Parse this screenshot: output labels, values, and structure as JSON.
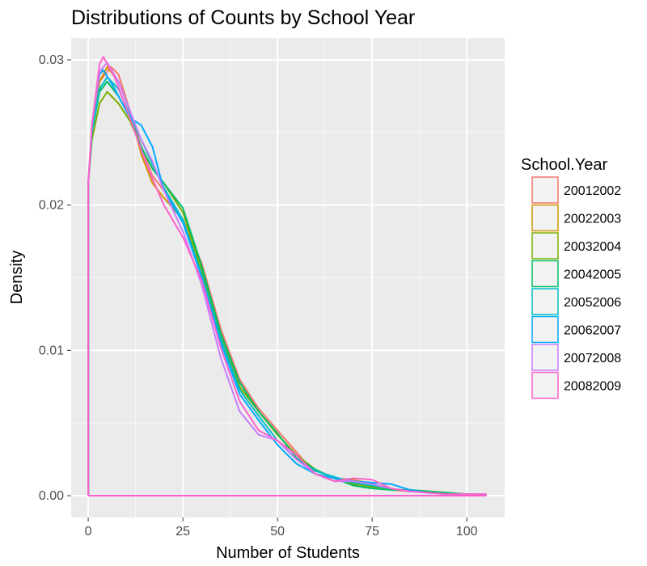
{
  "chart_data": {
    "type": "line",
    "title": "Distributions of Counts by School Year",
    "xlabel": "Number of Students",
    "ylabel": "Density",
    "xlim": [
      -4.5,
      110
    ],
    "ylim": [
      -0.0015,
      0.0315
    ],
    "x_ticks": [
      0,
      25,
      50,
      75,
      100
    ],
    "x_tick_labels": [
      "0",
      "25",
      "50",
      "75",
      "100"
    ],
    "y_ticks": [
      0.0,
      0.01,
      0.02,
      0.03
    ],
    "y_tick_labels": [
      "0.00",
      "0.01",
      "0.02",
      "0.03"
    ],
    "grid": true,
    "legend": {
      "title": "School.Year",
      "position": "right"
    },
    "series": [
      {
        "name": "20012002",
        "color": "#F8766D",
        "values": [
          [
            0,
            0
          ],
          [
            0,
            0.0215
          ],
          [
            1,
            0.025
          ],
          [
            3,
            0.0285
          ],
          [
            6,
            0.0295
          ],
          [
            8,
            0.029
          ],
          [
            11,
            0.0265
          ],
          [
            14,
            0.024
          ],
          [
            17,
            0.022
          ],
          [
            20,
            0.021
          ],
          [
            25,
            0.019
          ],
          [
            30,
            0.016
          ],
          [
            35,
            0.0115
          ],
          [
            40,
            0.008
          ],
          [
            45,
            0.006
          ],
          [
            50,
            0.0045
          ],
          [
            55,
            0.003
          ],
          [
            60,
            0.0015
          ],
          [
            65,
            0.001
          ],
          [
            70,
            0.0011
          ],
          [
            75,
            0.0008
          ],
          [
            80,
            0.0004
          ],
          [
            85,
            0.0003
          ],
          [
            90,
            0.0003
          ],
          [
            95,
            0.0002
          ],
          [
            100,
            0.0001
          ],
          [
            105,
            0.0001
          ],
          [
            105,
            0
          ],
          [
            0,
            0
          ]
        ]
      },
      {
        "name": "20022003",
        "color": "#CD9600",
        "values": [
          [
            0,
            0
          ],
          [
            0,
            0.0215
          ],
          [
            1,
            0.025
          ],
          [
            3,
            0.0285
          ],
          [
            5,
            0.0295
          ],
          [
            8,
            0.0285
          ],
          [
            11,
            0.0265
          ],
          [
            14,
            0.0235
          ],
          [
            17,
            0.0215
          ],
          [
            20,
            0.0205
          ],
          [
            25,
            0.019
          ],
          [
            30,
            0.0155
          ],
          [
            35,
            0.011
          ],
          [
            40,
            0.0075
          ],
          [
            45,
            0.0058
          ],
          [
            50,
            0.0042
          ],
          [
            55,
            0.0028
          ],
          [
            60,
            0.0015
          ],
          [
            65,
            0.0012
          ],
          [
            70,
            0.0011
          ],
          [
            75,
            0.0008
          ],
          [
            80,
            0.0005
          ],
          [
            85,
            0.0003
          ],
          [
            90,
            0.0003
          ],
          [
            95,
            0.0002
          ],
          [
            100,
            0.0001
          ],
          [
            105,
            0.0001
          ],
          [
            105,
            0
          ],
          [
            0,
            0
          ]
        ]
      },
      {
        "name": "20032004",
        "color": "#7CAE00",
        "values": [
          [
            0,
            0
          ],
          [
            0,
            0.0215
          ],
          [
            1,
            0.0245
          ],
          [
            3,
            0.027
          ],
          [
            5,
            0.0278
          ],
          [
            8,
            0.027
          ],
          [
            11,
            0.0258
          ],
          [
            14,
            0.024
          ],
          [
            17,
            0.0225
          ],
          [
            20,
            0.0215
          ],
          [
            25,
            0.0195
          ],
          [
            30,
            0.0155
          ],
          [
            35,
            0.011
          ],
          [
            40,
            0.0075
          ],
          [
            45,
            0.0058
          ],
          [
            50,
            0.0042
          ],
          [
            55,
            0.0028
          ],
          [
            60,
            0.0018
          ],
          [
            65,
            0.0012
          ],
          [
            70,
            0.0008
          ],
          [
            75,
            0.0006
          ],
          [
            80,
            0.0004
          ],
          [
            85,
            0.0004
          ],
          [
            90,
            0.0003
          ],
          [
            95,
            0.0002
          ],
          [
            100,
            0.0001
          ],
          [
            105,
            0.0001
          ],
          [
            105,
            0
          ],
          [
            0,
            0
          ]
        ]
      },
      {
        "name": "20042005",
        "color": "#00BE67",
        "values": [
          [
            0,
            0
          ],
          [
            0,
            0.0215
          ],
          [
            1,
            0.025
          ],
          [
            3,
            0.0278
          ],
          [
            5,
            0.0285
          ],
          [
            8,
            0.0275
          ],
          [
            11,
            0.026
          ],
          [
            14,
            0.024
          ],
          [
            17,
            0.0225
          ],
          [
            20,
            0.0215
          ],
          [
            25,
            0.0198
          ],
          [
            30,
            0.0158
          ],
          [
            35,
            0.0112
          ],
          [
            40,
            0.0078
          ],
          [
            45,
            0.0058
          ],
          [
            50,
            0.0043
          ],
          [
            55,
            0.0026
          ],
          [
            60,
            0.0018
          ],
          [
            65,
            0.0012
          ],
          [
            70,
            0.0007
          ],
          [
            75,
            0.0005
          ],
          [
            80,
            0.0004
          ],
          [
            85,
            0.0004
          ],
          [
            90,
            0.0003
          ],
          [
            95,
            0.0002
          ],
          [
            100,
            0.0001
          ],
          [
            105,
            0.0001
          ],
          [
            105,
            0
          ],
          [
            0,
            0
          ]
        ]
      },
      {
        "name": "20052006",
        "color": "#00BFC4",
        "values": [
          [
            0,
            0
          ],
          [
            0,
            0.0215
          ],
          [
            1,
            0.025
          ],
          [
            3,
            0.028
          ],
          [
            5,
            0.0288
          ],
          [
            8,
            0.028
          ],
          [
            11,
            0.0262
          ],
          [
            14,
            0.0245
          ],
          [
            17,
            0.0228
          ],
          [
            20,
            0.0212
          ],
          [
            25,
            0.019
          ],
          [
            30,
            0.0152
          ],
          [
            35,
            0.0108
          ],
          [
            40,
            0.0073
          ],
          [
            45,
            0.0055
          ],
          [
            50,
            0.0038
          ],
          [
            55,
            0.0025
          ],
          [
            60,
            0.0017
          ],
          [
            65,
            0.0013
          ],
          [
            70,
            0.0009
          ],
          [
            75,
            0.0007
          ],
          [
            80,
            0.0005
          ],
          [
            85,
            0.0003
          ],
          [
            90,
            0.0002
          ],
          [
            95,
            0.0001
          ],
          [
            100,
            0.0001
          ],
          [
            105,
            0.0001
          ],
          [
            105,
            0
          ],
          [
            0,
            0
          ]
        ]
      },
      {
        "name": "20062007",
        "color": "#00A9FF",
        "values": [
          [
            0,
            0
          ],
          [
            0,
            0.0215
          ],
          [
            1,
            0.0255
          ],
          [
            3,
            0.029
          ],
          [
            4,
            0.0293
          ],
          [
            7,
            0.028
          ],
          [
            11,
            0.026
          ],
          [
            14,
            0.0255
          ],
          [
            17,
            0.024
          ],
          [
            20,
            0.021
          ],
          [
            25,
            0.0188
          ],
          [
            30,
            0.015
          ],
          [
            35,
            0.0105
          ],
          [
            40,
            0.007
          ],
          [
            45,
            0.0052
          ],
          [
            50,
            0.0035
          ],
          [
            55,
            0.0022
          ],
          [
            60,
            0.0015
          ],
          [
            65,
            0.0012
          ],
          [
            70,
            0.001
          ],
          [
            75,
            0.0009
          ],
          [
            80,
            0.0008
          ],
          [
            85,
            0.0004
          ],
          [
            90,
            0.0002
          ],
          [
            95,
            0.0001
          ],
          [
            100,
            0.0001
          ],
          [
            105,
            0.0001
          ],
          [
            105,
            0
          ],
          [
            0,
            0
          ]
        ]
      },
      {
        "name": "20072008",
        "color": "#C77CFF",
        "values": [
          [
            0,
            0
          ],
          [
            0,
            0.0215
          ],
          [
            1,
            0.0255
          ],
          [
            3,
            0.0292
          ],
          [
            5,
            0.0298
          ],
          [
            8,
            0.0285
          ],
          [
            11,
            0.0265
          ],
          [
            14,
            0.0245
          ],
          [
            17,
            0.023
          ],
          [
            20,
            0.021
          ],
          [
            25,
            0.0182
          ],
          [
            30,
            0.0145
          ],
          [
            35,
            0.0095
          ],
          [
            40,
            0.0058
          ],
          [
            45,
            0.0042
          ],
          [
            50,
            0.0038
          ],
          [
            55,
            0.0025
          ],
          [
            60,
            0.0015
          ],
          [
            65,
            0.001
          ],
          [
            70,
            0.001
          ],
          [
            75,
            0.0008
          ],
          [
            80,
            0.0005
          ],
          [
            85,
            0.0003
          ],
          [
            90,
            0.0002
          ],
          [
            95,
            0.0001
          ],
          [
            100,
            0.0001
          ],
          [
            105,
            0.0001
          ],
          [
            105,
            0
          ],
          [
            0,
            0
          ]
        ]
      },
      {
        "name": "20082009",
        "color": "#FF61CC",
        "values": [
          [
            0,
            0
          ],
          [
            0,
            0.0215
          ],
          [
            1,
            0.0255
          ],
          [
            3,
            0.0297
          ],
          [
            4,
            0.0302
          ],
          [
            7,
            0.0288
          ],
          [
            11,
            0.026
          ],
          [
            14,
            0.0238
          ],
          [
            17,
            0.0218
          ],
          [
            20,
            0.02
          ],
          [
            25,
            0.0178
          ],
          [
            30,
            0.0148
          ],
          [
            35,
            0.0102
          ],
          [
            40,
            0.0065
          ],
          [
            45,
            0.0045
          ],
          [
            50,
            0.0038
          ],
          [
            55,
            0.0028
          ],
          [
            60,
            0.0015
          ],
          [
            65,
            0.001
          ],
          [
            70,
            0.0012
          ],
          [
            75,
            0.0011
          ],
          [
            80,
            0.0005
          ],
          [
            85,
            0.0003
          ],
          [
            90,
            0.0002
          ],
          [
            95,
            0.0001
          ],
          [
            100,
            0.0001
          ],
          [
            105,
            0.0001
          ],
          [
            105,
            0
          ],
          [
            0,
            0
          ]
        ]
      }
    ]
  }
}
